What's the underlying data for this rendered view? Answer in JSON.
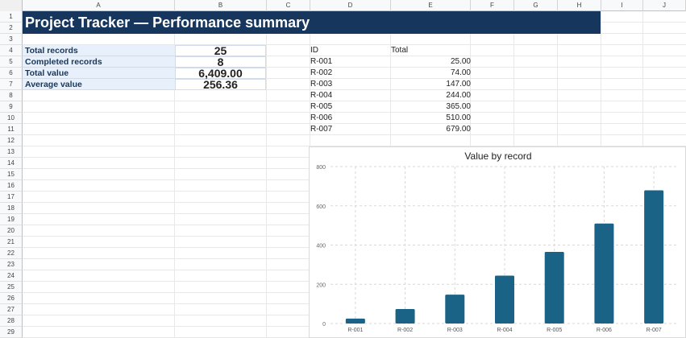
{
  "sheet": {
    "columns": [
      "A",
      "B",
      "C",
      "D",
      "E",
      "F",
      "G",
      "H",
      "I",
      "J"
    ],
    "rows": [
      "1",
      "2",
      "3",
      "4",
      "5",
      "6",
      "7",
      "8",
      "9",
      "10",
      "11",
      "12",
      "13",
      "14",
      "15",
      "16",
      "17",
      "18",
      "19",
      "20",
      "21",
      "22",
      "23",
      "24",
      "25",
      "26",
      "27",
      "28",
      "29"
    ]
  },
  "title": "Project Tracker — Performance summary",
  "kpis": [
    {
      "label": "Total records",
      "value": "25"
    },
    {
      "label": "Completed records",
      "value": "8"
    },
    {
      "label": "Total value",
      "value": "6,409.00"
    },
    {
      "label": "Average value",
      "value": "256.36"
    }
  ],
  "table": {
    "headers": [
      "ID",
      "Total"
    ],
    "rows": [
      {
        "id": "R-001",
        "total": "25.00"
      },
      {
        "id": "R-002",
        "total": "74.00"
      },
      {
        "id": "R-003",
        "total": "147.00"
      },
      {
        "id": "R-004",
        "total": "244.00"
      },
      {
        "id": "R-005",
        "total": "365.00"
      },
      {
        "id": "R-006",
        "total": "510.00"
      },
      {
        "id": "R-007",
        "total": "679.00"
      }
    ]
  },
  "colors": {
    "banner": "#17365d",
    "bar": "#1a6286",
    "kpi_label_bg": "#e8f1fb"
  },
  "chart_data": {
    "type": "bar",
    "title": "Value by record",
    "categories": [
      "R-001",
      "R-002",
      "R-003",
      "R-004",
      "R-005",
      "R-006",
      "R-007"
    ],
    "values": [
      25,
      74,
      147,
      244,
      365,
      510,
      679
    ],
    "ylim": [
      0,
      800
    ],
    "yticks": [
      "0",
      "200",
      "400",
      "600",
      "800"
    ],
    "grid": true,
    "xlabel": "",
    "ylabel": ""
  }
}
